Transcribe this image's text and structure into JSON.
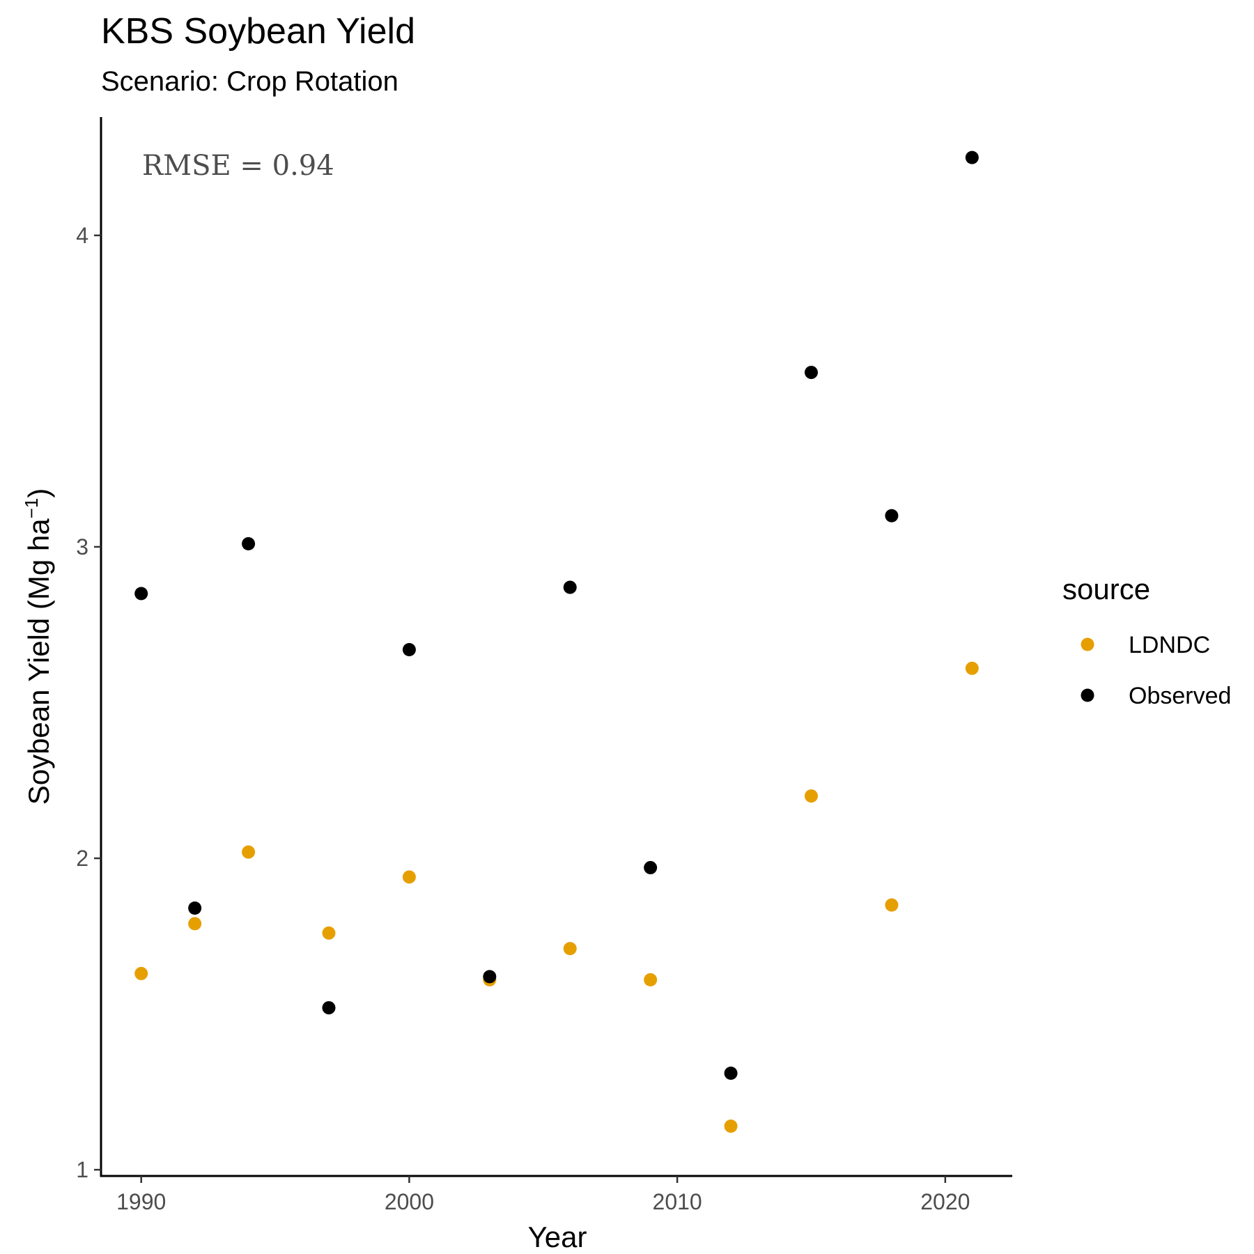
{
  "chart_data": {
    "type": "scatter",
    "title": "KBS Soybean Yield",
    "subtitle": "Scenario: Crop Rotation",
    "xlabel": "Year",
    "ylabel_main": "Soybean Yield (Mg ha",
    "ylabel_sup": "−1",
    "ylabel_close": ")",
    "xlim": [
      1988.5,
      2022.5
    ],
    "ylim": [
      0.98,
      4.38
    ],
    "xticks": [
      1990,
      2000,
      2010,
      2020
    ],
    "yticks": [
      1,
      2,
      3,
      4
    ],
    "grid": false,
    "annotation": "RMSE = 0.94",
    "legend": {
      "title": "source",
      "position": "right"
    },
    "series": [
      {
        "name": "LDNDC",
        "color": "#E69F00",
        "points": [
          {
            "x": 1990,
            "y": 1.63
          },
          {
            "x": 1992,
            "y": 1.79
          },
          {
            "x": 1994,
            "y": 2.02
          },
          {
            "x": 1997,
            "y": 1.76
          },
          {
            "x": 2000,
            "y": 1.94
          },
          {
            "x": 2003,
            "y": 1.61
          },
          {
            "x": 2006,
            "y": 1.71
          },
          {
            "x": 2009,
            "y": 1.61
          },
          {
            "x": 2012,
            "y": 1.14
          },
          {
            "x": 2015,
            "y": 2.2
          },
          {
            "x": 2018,
            "y": 1.85
          },
          {
            "x": 2021,
            "y": 2.61
          }
        ]
      },
      {
        "name": "Observed",
        "color": "#000000",
        "points": [
          {
            "x": 1990,
            "y": 2.85
          },
          {
            "x": 1992,
            "y": 1.84
          },
          {
            "x": 1994,
            "y": 3.01
          },
          {
            "x": 1997,
            "y": 1.52
          },
          {
            "x": 2000,
            "y": 2.67
          },
          {
            "x": 2003,
            "y": 1.62
          },
          {
            "x": 2006,
            "y": 2.87
          },
          {
            "x": 2009,
            "y": 1.97
          },
          {
            "x": 2012,
            "y": 1.31
          },
          {
            "x": 2015,
            "y": 3.56
          },
          {
            "x": 2018,
            "y": 3.1
          },
          {
            "x": 2021,
            "y": 4.25
          }
        ]
      }
    ]
  }
}
